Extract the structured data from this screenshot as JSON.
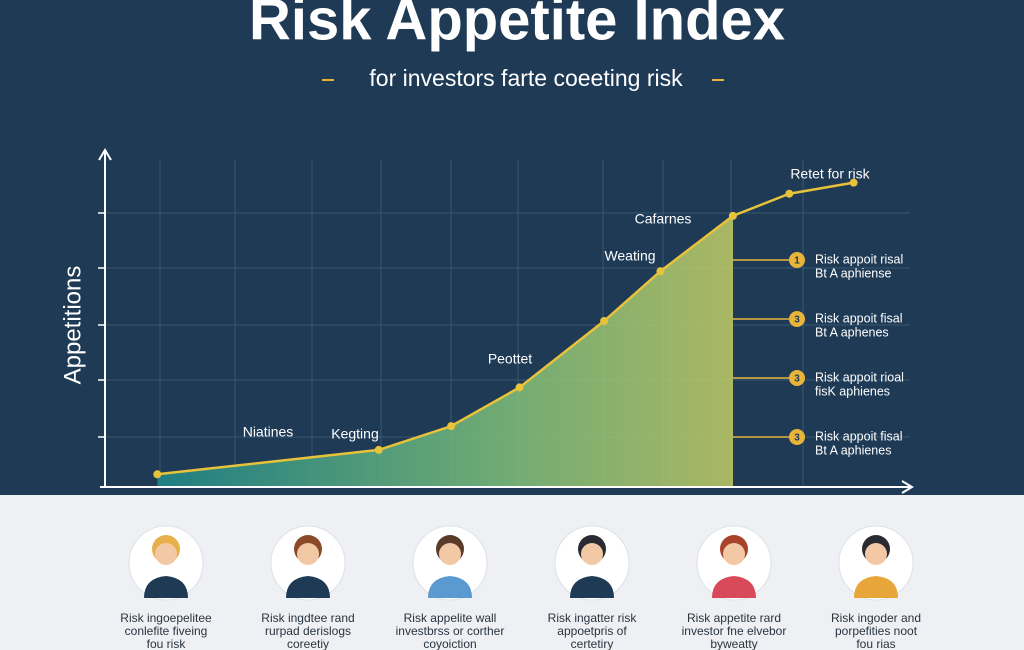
{
  "chart_data": {
    "type": "area",
    "title": "Risk Appetite Index",
    "subtitle": "for investors farte coeeting risk",
    "y_label": "Appetitions",
    "x": [
      6.5,
      34,
      43,
      51.5,
      62,
      69,
      78,
      85,
      93
    ],
    "xlim": [
      0,
      100
    ],
    "ylim": [
      0,
      6
    ],
    "series": [
      {
        "color": "#e8c23a",
        "values": [
          0.23,
          0.67,
          1.1,
          1.8,
          3.0,
          3.9,
          4.9,
          5.3,
          5.5
        ]
      }
    ],
    "annotations": [
      "Niatines",
      "Kegting",
      "Peottet",
      "Weating",
      "Cafarnes",
      "Retet for risk"
    ]
  },
  "callouts": [
    {
      "number": "1",
      "lines": [
        "Risk appoit risal",
        "Bt A aphiense"
      ]
    },
    {
      "number": "3",
      "lines": [
        "Risk appoit fisal",
        "Bt A aphenes"
      ]
    },
    {
      "number": "3",
      "lines": [
        "Risk appoit rioal",
        "fisK aphienes"
      ]
    },
    {
      "number": "3",
      "lines": [
        "Risk appoit fisal",
        "Bt A aphienes"
      ]
    }
  ],
  "people": [
    {
      "lines": [
        "Risk ingoepelitee",
        "conlefite fiveing",
        "fou risk"
      ]
    },
    {
      "lines": [
        "Risk ingdtee rand",
        "rurpad derislogs",
        "coreetiy"
      ]
    },
    {
      "lines": [
        "Risk appelite wall",
        "investbrss or corther",
        "coyoiction"
      ]
    },
    {
      "lines": [
        "Risk ingatter risk",
        "appoetpris of",
        "certetiry"
      ]
    },
    {
      "lines": [
        "Risk appetite rard",
        "investor fne elvebor",
        "byweatty"
      ]
    },
    {
      "lines": [
        "Risk ingoder and",
        "porpefities noot",
        "fou rias"
      ]
    }
  ]
}
